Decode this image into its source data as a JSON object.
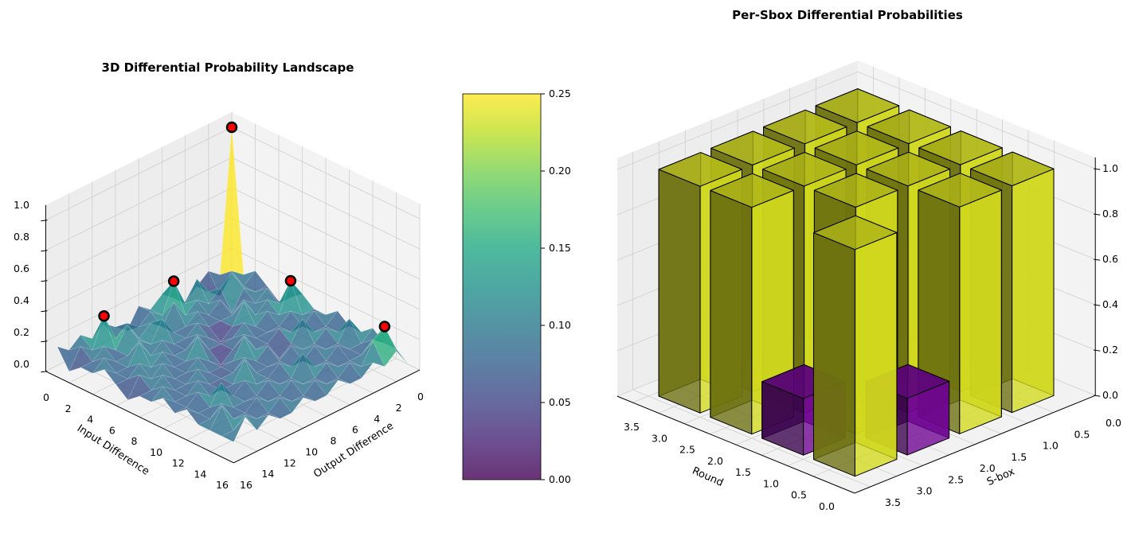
{
  "chart_data": [
    {
      "type": "surface",
      "title": "3D Differential Probability Landscape",
      "xlabel": "Input Difference",
      "ylabel": "Output Difference",
      "xlim": [
        0,
        16
      ],
      "ylim": [
        0,
        16
      ],
      "zlim": [
        0,
        1.1
      ],
      "x_ticks": [
        "0",
        "2",
        "4",
        "6",
        "8",
        "10",
        "12",
        "14",
        "16"
      ],
      "y_ticks": [
        "0",
        "2",
        "4",
        "6",
        "8",
        "10",
        "12",
        "14",
        "16"
      ],
      "z_ticks": [
        "0.0",
        "0.2",
        "0.4",
        "0.6",
        "0.8",
        "1.0"
      ],
      "colormap": "viridis",
      "z": [
        [
          1,
          0.0625,
          0.125,
          0.0625,
          0,
          0.0625,
          0.125,
          0.0625,
          0.125,
          0,
          0.0625,
          0.125,
          0.0625,
          0.125,
          0.0625,
          0.125
        ],
        [
          0.0625,
          0.125,
          0,
          0.0625,
          0.1875,
          0.0625,
          0.25,
          0.0625,
          0.125,
          0.0625,
          0.125,
          0.0625,
          0.25,
          0.0625,
          0.125,
          0
        ],
        [
          0.125,
          0.0625,
          0.1875,
          0.125,
          0.0625,
          0.125,
          0.0625,
          0.1875,
          0.0625,
          0.125,
          0.0625,
          0.1875,
          0.0625,
          0.125,
          0.0625,
          0.0625
        ],
        [
          0.0625,
          0.0625,
          0.125,
          0,
          0.125,
          0.0625,
          0.125,
          0.0625,
          0.0625,
          0.1875,
          0.0625,
          0.125,
          0.0625,
          0.0625,
          0.125,
          0.0625
        ],
        [
          0,
          0.125,
          0.0625,
          0.125,
          0.0625,
          0.0625,
          0.0625,
          0.125,
          0.0625,
          0.0625,
          0.125,
          0.0625,
          0.1875,
          0.0625,
          0.0625,
          0.125
        ],
        [
          0.0625,
          0.0625,
          0.125,
          0.0625,
          0.1875,
          0.0625,
          0,
          0.0625,
          0.125,
          0.0625,
          0.0625,
          0.125,
          0.0625,
          0.125,
          0.0625,
          0.0625
        ],
        [
          0.125,
          0.25,
          0.0625,
          0.125,
          0.0625,
          0.125,
          0.0625,
          0.0625,
          0.0625,
          0.1875,
          0.0625,
          0.0625,
          0.125,
          0.0625,
          0.125,
          0
        ],
        [
          0.0625,
          0.0625,
          0.125,
          0.0625,
          0.0625,
          0.0625,
          0.125,
          0.0625,
          0,
          0.0625,
          0.125,
          0.0625,
          0.0625,
          0.125,
          0.0625,
          0.0625
        ],
        [
          0.0625,
          0.125,
          0.0625,
          0.0625,
          0.125,
          0.0625,
          0.0625,
          0.1875,
          0.0625,
          0.0625,
          0.0625,
          0.125,
          0.0625,
          0.0625,
          0.125,
          0.0625
        ],
        [
          0.125,
          0.0625,
          0.0625,
          0.1875,
          0.0625,
          0,
          0.125,
          0.0625,
          0.125,
          0.0625,
          0.0625,
          0.0625,
          0.125,
          0.0625,
          0.0625,
          0.125
        ],
        [
          0.0625,
          0.0625,
          0.125,
          0.0625,
          0.0625,
          0.125,
          0.0625,
          0.0625,
          0.0625,
          0.1875,
          0.0625,
          0.0625,
          0.0625,
          0.125,
          0.0625,
          0.0625
        ],
        [
          0.0625,
          0.1875,
          0.0625,
          0.0625,
          0.125,
          0.0625,
          0.0625,
          0.125,
          0.0625,
          0.0625,
          0.125,
          0.0625,
          0.1875,
          0.0625,
          0.0625,
          0.125
        ],
        [
          0.125,
          0.0625,
          0.0625,
          0.125,
          0.0625,
          0.0625,
          0.1875,
          0.0625,
          0.0625,
          0.125,
          0.0625,
          0.0625,
          0.0625,
          0.125,
          0.0625,
          0.0625
        ],
        [
          0.0625,
          0.125,
          0.0625,
          0.0625,
          0.0625,
          0.125,
          0.0625,
          0.0625,
          0.125,
          0.0625,
          0.0625,
          0.125,
          0.0625,
          0.0625,
          0.1875,
          0.0625
        ],
        [
          0.0625,
          0.25,
          0.1875,
          0.0625,
          0.125,
          0.0625,
          0.0625,
          0.125,
          0.0625,
          0.0625,
          0.125,
          0.0625,
          0.0625,
          0.125,
          0.0625,
          0.0625
        ],
        [
          0,
          0.125,
          0.0625,
          0.125,
          0.0625,
          0.0625,
          0.125,
          0.0625,
          0.0625,
          0.125,
          0.0625,
          0.0625,
          0.125,
          0.0625,
          0.1875,
          0.0625
        ]
      ],
      "highlighted_points": [
        {
          "input": 0,
          "output": 0,
          "value": 1.0
        },
        {
          "input": 1,
          "output": 6,
          "value": 0.25
        },
        {
          "input": 6,
          "output": 1,
          "value": 0.25
        },
        {
          "input": 1,
          "output": 12,
          "value": 0.25
        },
        {
          "input": 14,
          "output": 1,
          "value": 0.25
        }
      ],
      "colorbar": {
        "range": [
          0,
          0.25
        ],
        "ticks": [
          "0.00",
          "0.05",
          "0.10",
          "0.15",
          "0.20",
          "0.25"
        ]
      }
    },
    {
      "type": "bar3d",
      "title": "Per-Sbox Differential Probabilities",
      "xlabel": "Round",
      "ylabel": "S-box",
      "zlim": [
        0,
        1.05
      ],
      "x_ticks": [
        "0.0",
        "0.5",
        "1.0",
        "1.5",
        "2.0",
        "2.5",
        "3.0",
        "3.5"
      ],
      "y_ticks": [
        "0.0",
        "0.5",
        "1.0",
        "1.5",
        "2.0",
        "2.5",
        "3.0",
        "3.5"
      ],
      "z_ticks": [
        "0.0",
        "0.2",
        "0.4",
        "0.6",
        "0.8",
        "1.0"
      ],
      "colormap": "plasma",
      "rounds": [
        0,
        1,
        2,
        3
      ],
      "sboxes": [
        0,
        1,
        2,
        3
      ],
      "values": [
        [
          1.0,
          1.0,
          0.25,
          1.0
        ],
        [
          1.0,
          1.0,
          1.0,
          0.25
        ],
        [
          1.0,
          1.0,
          1.0,
          1.0
        ],
        [
          1.0,
          1.0,
          1.0,
          1.0
        ]
      ]
    }
  ]
}
